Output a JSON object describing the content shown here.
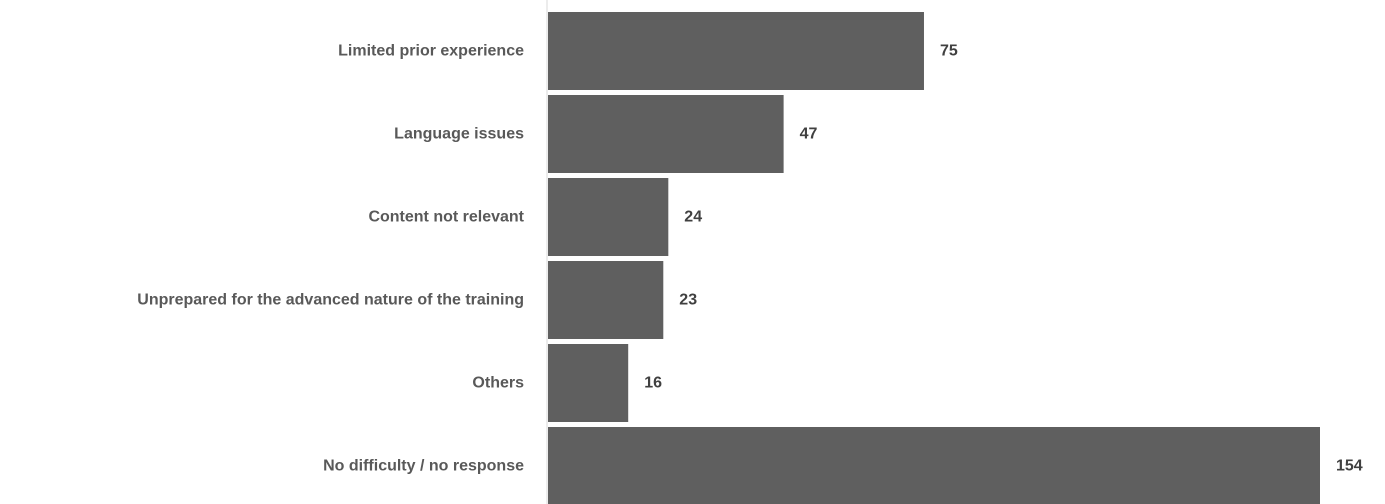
{
  "chart_data": {
    "type": "bar",
    "orientation": "horizontal",
    "title": "",
    "xlabel": "",
    "ylabel": "",
    "categories": [
      "Limited prior experience",
      "Language issues",
      "Content not relevant",
      "Unprepared for the advanced nature of the training",
      "Others",
      "No difficulty / no response"
    ],
    "values": [
      75,
      47,
      24,
      23,
      16,
      154
    ],
    "xlim": [
      0,
      154
    ],
    "grid": false,
    "legend": "none",
    "data_labels": true,
    "colors": {
      "bar": "#5f5f5f",
      "category_text": "#595959",
      "value_text": "#404040",
      "axis_line": "#d9d9d9",
      "background": "#ffffff"
    }
  }
}
